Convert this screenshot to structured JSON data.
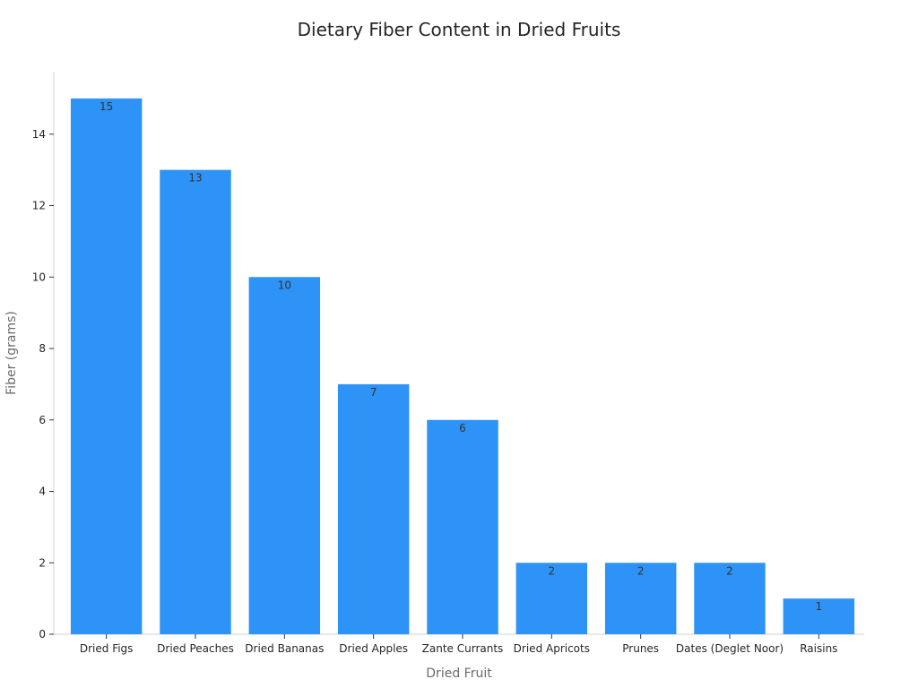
{
  "chart_data": {
    "type": "bar",
    "title": "Dietary Fiber Content in Dried Fruits",
    "xlabel": "Dried Fruit",
    "ylabel": "Fiber (grams)",
    "categories": [
      "Dried Figs",
      "Dried Peaches",
      "Dried Bananas",
      "Dried Apples",
      "Zante Currants",
      "Dried Apricots",
      "Prunes",
      "Dates (Deglet Noor)",
      "Raisins"
    ],
    "values": [
      15,
      13,
      10,
      7,
      6,
      2,
      2,
      2,
      1
    ],
    "ylim": [
      0,
      15.75
    ],
    "yticks": [
      0,
      2,
      4,
      6,
      8,
      10,
      12,
      14
    ],
    "bar_color": "#2e93f6",
    "grid": false,
    "legend": "none"
  }
}
